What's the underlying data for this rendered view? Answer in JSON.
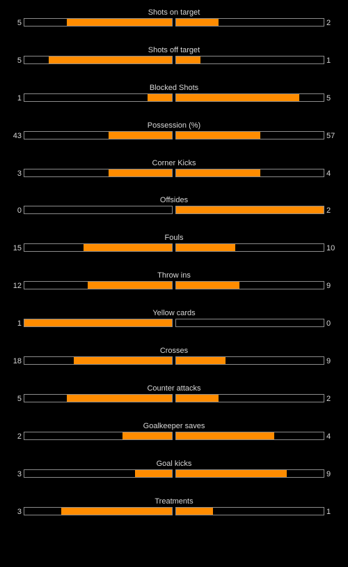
{
  "colors": {
    "background": "#000000",
    "bar_fill": "#ff8c00",
    "bar_border": "#8c8c8c",
    "text": "#d8d8d8"
  },
  "stats": [
    {
      "label": "Shots on target",
      "home": "5",
      "away": "2",
      "home_share": 0.7143,
      "away_share": 0.2857
    },
    {
      "label": "Shots off target",
      "home": "5",
      "away": "1",
      "home_share": 0.8333,
      "away_share": 0.1667
    },
    {
      "label": "Blocked Shots",
      "home": "1",
      "away": "5",
      "home_share": 0.1667,
      "away_share": 0.8333
    },
    {
      "label": "Possession (%)",
      "home": "43",
      "away": "57",
      "home_share": 0.43,
      "away_share": 0.57
    },
    {
      "label": "Corner Kicks",
      "home": "3",
      "away": "4",
      "home_share": 0.4286,
      "away_share": 0.5714
    },
    {
      "label": "Offsides",
      "home": "0",
      "away": "2",
      "home_share": 0.0,
      "away_share": 1.0
    },
    {
      "label": "Fouls",
      "home": "15",
      "away": "10",
      "home_share": 0.6,
      "away_share": 0.4
    },
    {
      "label": "Throw ins",
      "home": "12",
      "away": "9",
      "home_share": 0.5714,
      "away_share": 0.4286
    },
    {
      "label": "Yellow cards",
      "home": "1",
      "away": "0",
      "home_share": 1.0,
      "away_share": 0.0
    },
    {
      "label": "Crosses",
      "home": "18",
      "away": "9",
      "home_share": 0.6667,
      "away_share": 0.3333
    },
    {
      "label": "Counter attacks",
      "home": "5",
      "away": "2",
      "home_share": 0.7143,
      "away_share": 0.2857
    },
    {
      "label": "Goalkeeper saves",
      "home": "2",
      "away": "4",
      "home_share": 0.3333,
      "away_share": 0.6667
    },
    {
      "label": "Goal kicks",
      "home": "3",
      "away": "9",
      "home_share": 0.25,
      "away_share": 0.75
    },
    {
      "label": "Treatments",
      "home": "3",
      "away": "1",
      "home_share": 0.75,
      "away_share": 0.25
    }
  ]
}
